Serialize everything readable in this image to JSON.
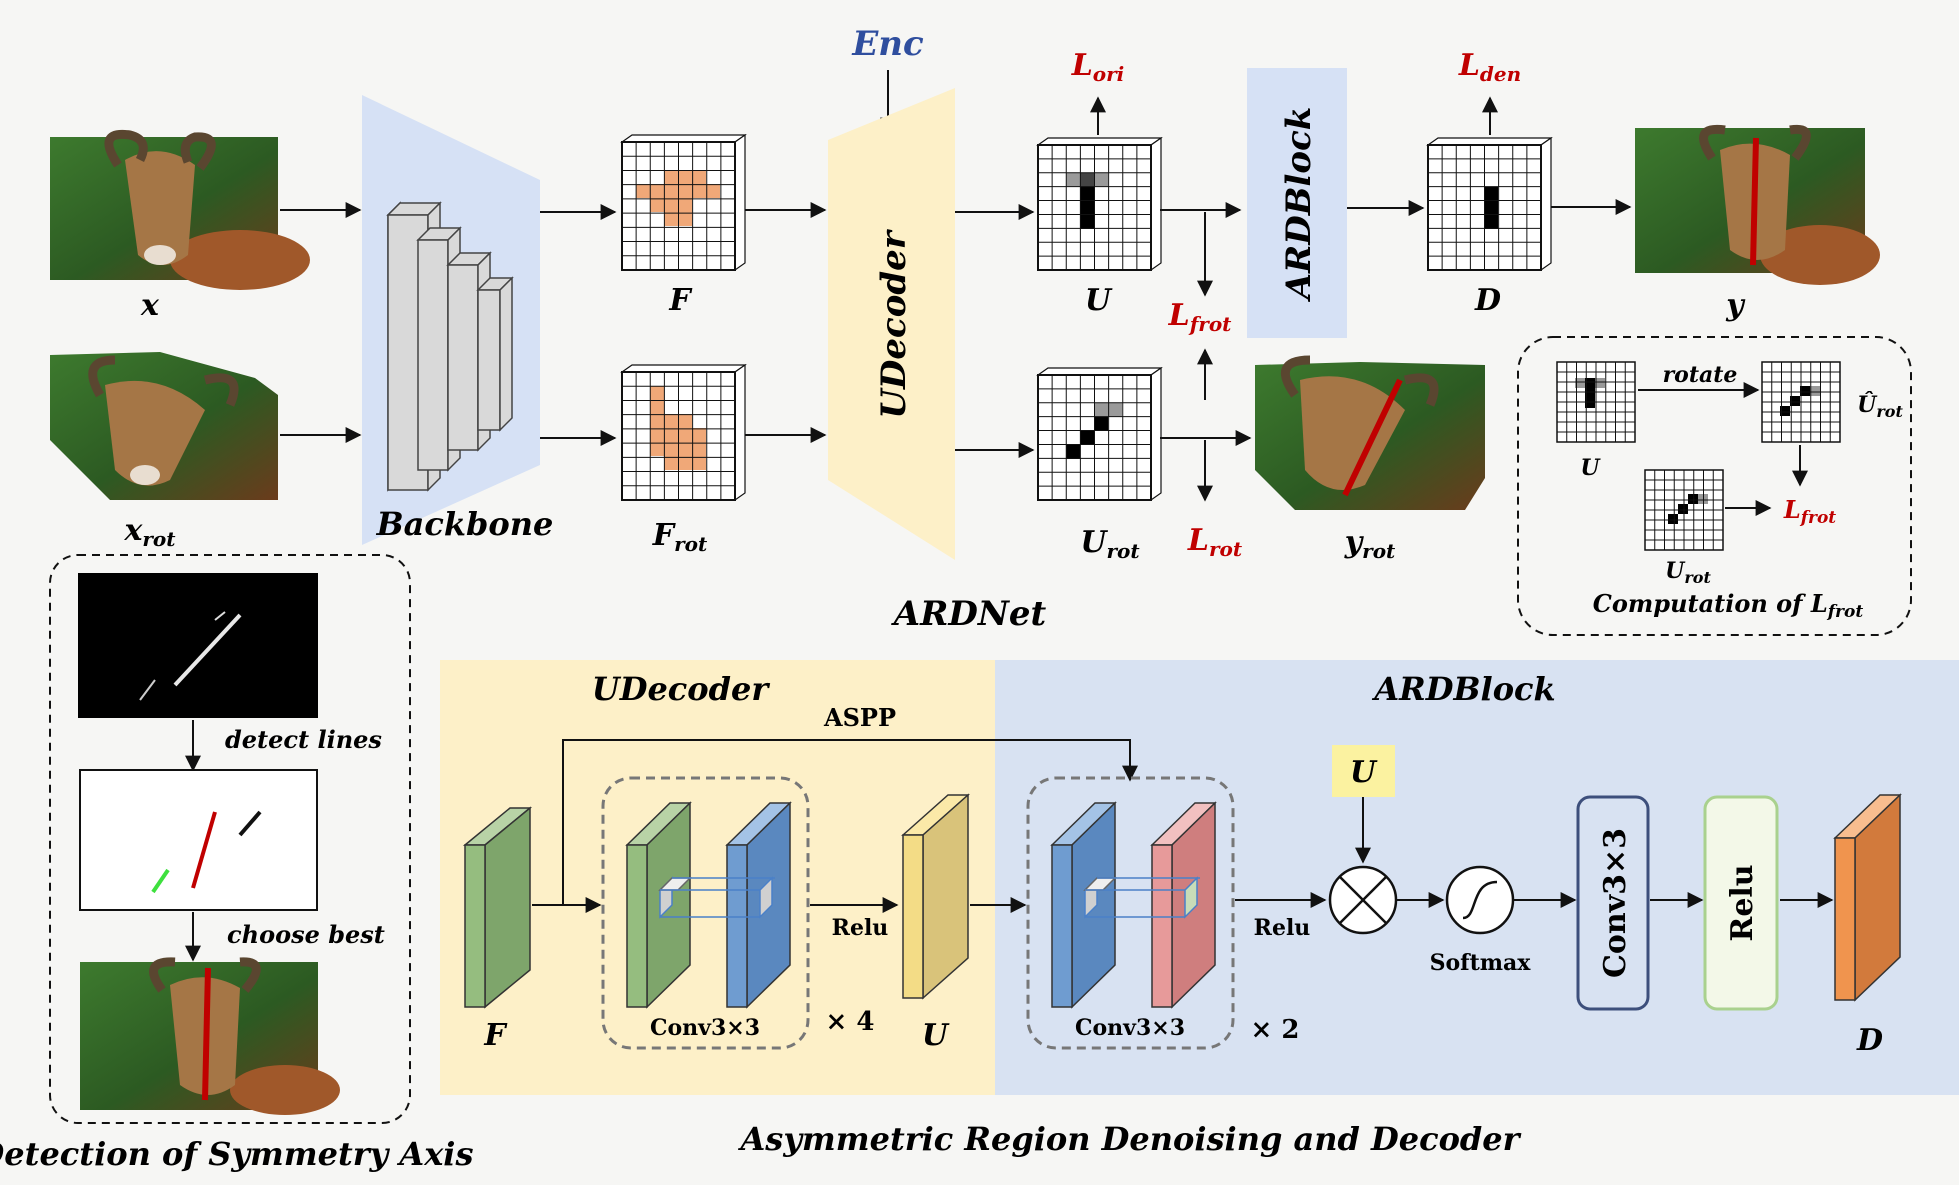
{
  "colors": {
    "red": "#c00000",
    "blue": "#2f4e9e",
    "backbone_fill": "#d6e1f5",
    "udecoder_fill": "#fdf0c8",
    "ardblock_fill": "#d8e2f2",
    "feature_orange": "#f0a878",
    "green_block": "#95bd7f",
    "blue_block": "#6f9cd0",
    "yellow_block": "#f3dc86",
    "pink_block": "#e79a9a",
    "orange_block": "#f0944e"
  },
  "top": {
    "title": "ARDNet",
    "enc_label": "Enc",
    "inputs": {
      "x_label": "x",
      "xrot_main": "x",
      "xrot_sub": "rot"
    },
    "backbone_label": "Backbone",
    "features": {
      "F_label": "F",
      "Frot_main": "F",
      "Frot_sub": "rot"
    },
    "udecoder_label": "UDecoder",
    "U": {
      "U_label": "U",
      "Urot_main": "U",
      "Urot_sub": "rot"
    },
    "ardblock_label": "ARDBlock",
    "D_label": "D",
    "outputs": {
      "y_label": "y",
      "yrot_main": "y",
      "yrot_sub": "rot"
    },
    "losses": {
      "Lori_main": "L",
      "Lori_sub": "ori",
      "Lden_main": "L",
      "Lden_sub": "den",
      "Lfrot_main": "L",
      "Lfrot_sub": "frot",
      "Lrot_main": "L",
      "Lrot_sub": "rot"
    }
  },
  "frot_box": {
    "rotate_label": "rotate",
    "U_label": "U",
    "Uhat_main": "Û",
    "Uhat_sub": "rot",
    "Urot_main": "U",
    "Urot_sub": "rot",
    "L_main": "L",
    "L_sub": "frot",
    "caption_main": "Computation of L",
    "caption_sub": "frot"
  },
  "detection": {
    "step1_label": "detect  lines",
    "step2_label": "choose best",
    "caption": "Detection of Symmetry Axis"
  },
  "bottom": {
    "udecoder_title": "UDecoder",
    "ardblock_title": "ARDBlock",
    "aspp_label": "ASPP",
    "F_label": "F",
    "conv1_label": "Conv3×3",
    "times4_label": "× 4",
    "relu1_label": "Relu",
    "U_out_label": "U",
    "conv2_label": "Conv3×3",
    "times2_label": "× 2",
    "relu2_label": "Relu",
    "U_in_label": "U",
    "softmax_label": "Softmax",
    "conv3_label": "Conv3×3",
    "relu3_label": "Relu",
    "D_label": "D",
    "caption": "Asymmetric Region Denoising and Decoder"
  }
}
